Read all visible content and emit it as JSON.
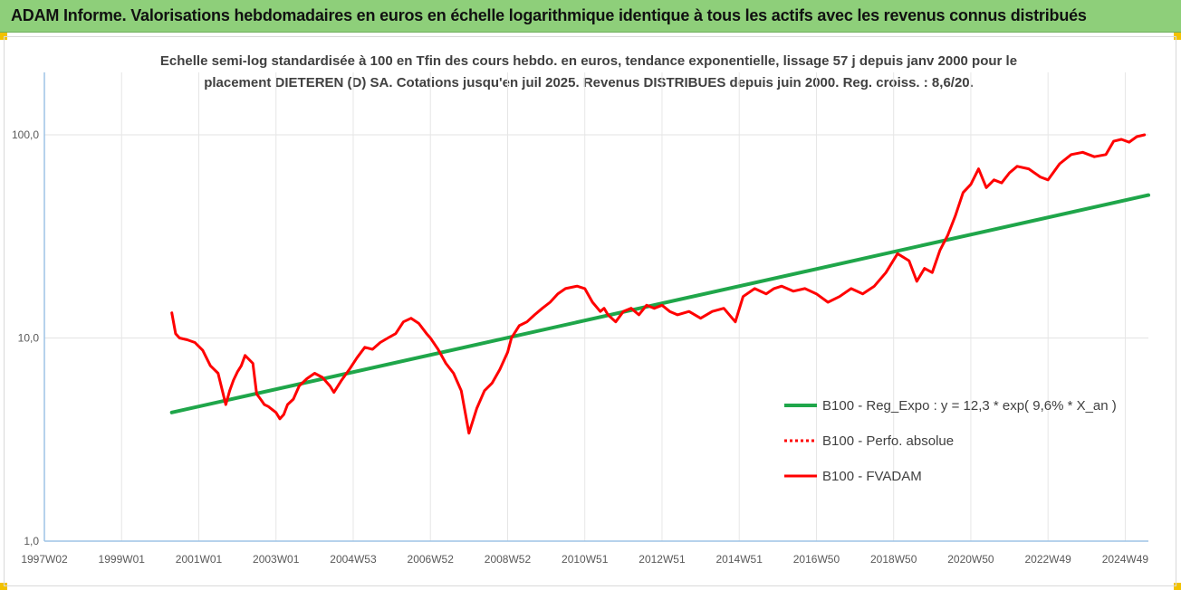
{
  "banner": {
    "title": "ADAM Informe. Valorisations hebdomadaires en euros en échelle logarithmique identique à tous les actifs avec les revenus connus distribués",
    "background": "#8ecf7a"
  },
  "chart_data": {
    "type": "line",
    "subtitle_line1": "Echelle semi-log standardisée à 100 en Tfin des cours hebdo. en euros, tendance exponentielle, lissage 57 j depuis janv 2000 pour le",
    "subtitle_line2": "placement DIETEREN (D) SA. Cotations jusqu'en juil 2025.  Revenus DISTRIBUES depuis juin 2000.  Reg. croiss. : 8,6/20.",
    "y_scale": "log",
    "ylim": [
      1,
      200
    ],
    "y_ticks": [
      {
        "value": 1,
        "label": "1,0"
      },
      {
        "value": 10,
        "label": "10,0"
      },
      {
        "value": 100,
        "label": "100,0"
      }
    ],
    "xlim": [
      1997.0,
      2025.6
    ],
    "x_ticks": [
      {
        "value": 1997.0,
        "label": "1997W02"
      },
      {
        "value": 1999.0,
        "label": "1999W01"
      },
      {
        "value": 2001.0,
        "label": "2001W01"
      },
      {
        "value": 2003.0,
        "label": "2003W01"
      },
      {
        "value": 2005.0,
        "label": "2004W53"
      },
      {
        "value": 2007.0,
        "label": "2006W52"
      },
      {
        "value": 2009.0,
        "label": "2008W52"
      },
      {
        "value": 2011.0,
        "label": "2010W51"
      },
      {
        "value": 2013.0,
        "label": "2012W51"
      },
      {
        "value": 2015.0,
        "label": "2014W51"
      },
      {
        "value": 2017.0,
        "label": "2016W50"
      },
      {
        "value": 2019.0,
        "label": "2018W50"
      },
      {
        "value": 2021.0,
        "label": "2020W50"
      },
      {
        "value": 2023.0,
        "label": "2022W49"
      },
      {
        "value": 2025.0,
        "label": "2024W49"
      }
    ],
    "grid": "vertical",
    "legend_position": "right",
    "series": [
      {
        "name": "B100 - Reg_Expo : y = 12,3 * exp( 9,6% *  X_an )",
        "color": "#1fa64a",
        "style": "solid",
        "x": [
          2000.3,
          2025.6
        ],
        "y": [
          4.3,
          50.5
        ]
      },
      {
        "name": "B100 - Perfo. absolue",
        "color": "#ff0000",
        "style": "dotted",
        "x": [],
        "y": []
      },
      {
        "name": "B100 - FVADAM",
        "color": "#ff0000",
        "style": "solid",
        "x": [
          2000.3,
          2000.4,
          2000.5,
          2000.7,
          2000.9,
          2001.1,
          2001.3,
          2001.5,
          2001.7,
          2001.8,
          2001.9,
          2002.0,
          2002.1,
          2002.2,
          2002.4,
          2002.5,
          2002.6,
          2002.7,
          2002.8,
          2003.0,
          2003.1,
          2003.2,
          2003.3,
          2003.45,
          2003.6,
          2003.8,
          2004.0,
          2004.2,
          2004.4,
          2004.5,
          2004.7,
          2004.9,
          2005.1,
          2005.3,
          2005.5,
          2005.7,
          2005.9,
          2006.1,
          2006.3,
          2006.5,
          2006.7,
          2006.9,
          2007.0,
          2007.2,
          2007.4,
          2007.6,
          2007.8,
          2008.0,
          2008.2,
          2008.4,
          2008.6,
          2008.8,
          2009.0,
          2009.1,
          2009.3,
          2009.5,
          2009.7,
          2009.9,
          2010.1,
          2010.3,
          2010.5,
          2010.8,
          2011.0,
          2011.2,
          2011.4,
          2011.5,
          2011.6,
          2011.8,
          2012.0,
          2012.2,
          2012.4,
          2012.6,
          2012.8,
          2013.0,
          2013.2,
          2013.4,
          2013.7,
          2014.0,
          2014.3,
          2014.6,
          2014.9,
          2015.1,
          2015.4,
          2015.7,
          2015.9,
          2016.1,
          2016.4,
          2016.7,
          2017.0,
          2017.3,
          2017.6,
          2017.9,
          2018.2,
          2018.5,
          2018.8,
          2019.1,
          2019.4,
          2019.6,
          2019.8,
          2020.0,
          2020.2,
          2020.4,
          2020.6,
          2020.8,
          2021.0,
          2021.2,
          2021.4,
          2021.6,
          2021.8,
          2022.0,
          2022.2,
          2022.5,
          2022.8,
          2023.0,
          2023.3,
          2023.6,
          2023.9,
          2024.2,
          2024.5,
          2024.7,
          2024.9,
          2025.1,
          2025.3,
          2025.5
        ],
        "y": [
          13.3,
          10.5,
          10.0,
          9.8,
          9.5,
          8.7,
          7.3,
          6.7,
          4.7,
          5.5,
          6.2,
          6.8,
          7.3,
          8.2,
          7.5,
          5.3,
          5.0,
          4.7,
          4.6,
          4.3,
          4.0,
          4.2,
          4.7,
          5.0,
          5.8,
          6.3,
          6.7,
          6.4,
          5.8,
          5.4,
          6.2,
          7.0,
          8.0,
          9.0,
          8.8,
          9.5,
          10.0,
          10.5,
          12.0,
          12.5,
          11.8,
          10.5,
          10.0,
          8.8,
          7.5,
          6.7,
          5.5,
          3.4,
          4.5,
          5.5,
          6.0,
          7.0,
          8.5,
          10.0,
          11.5,
          12.0,
          13.0,
          14.0,
          15.0,
          16.5,
          17.5,
          18.0,
          17.5,
          15.0,
          13.5,
          14.0,
          13.0,
          12.0,
          13.5,
          14.0,
          13.0,
          14.5,
          14.0,
          14.5,
          13.5,
          13.0,
          13.5,
          12.5,
          13.5,
          14.0,
          12.0,
          16.0,
          17.5,
          16.5,
          17.5,
          18.0,
          17.0,
          17.5,
          16.5,
          15.0,
          16.0,
          17.5,
          16.5,
          18.0,
          21.0,
          26.0,
          24.0,
          19.0,
          22.0,
          21.0,
          27.0,
          32.0,
          40.0,
          52.0,
          57.0,
          68.0,
          55.0,
          60.0,
          58.0,
          65.0,
          70.0,
          68.0,
          62.0,
          60.0,
          72.0,
          80.0,
          82.0,
          78.0,
          80.0,
          93.0,
          95.0,
          92.0,
          98.0,
          100.0
        ]
      }
    ]
  }
}
